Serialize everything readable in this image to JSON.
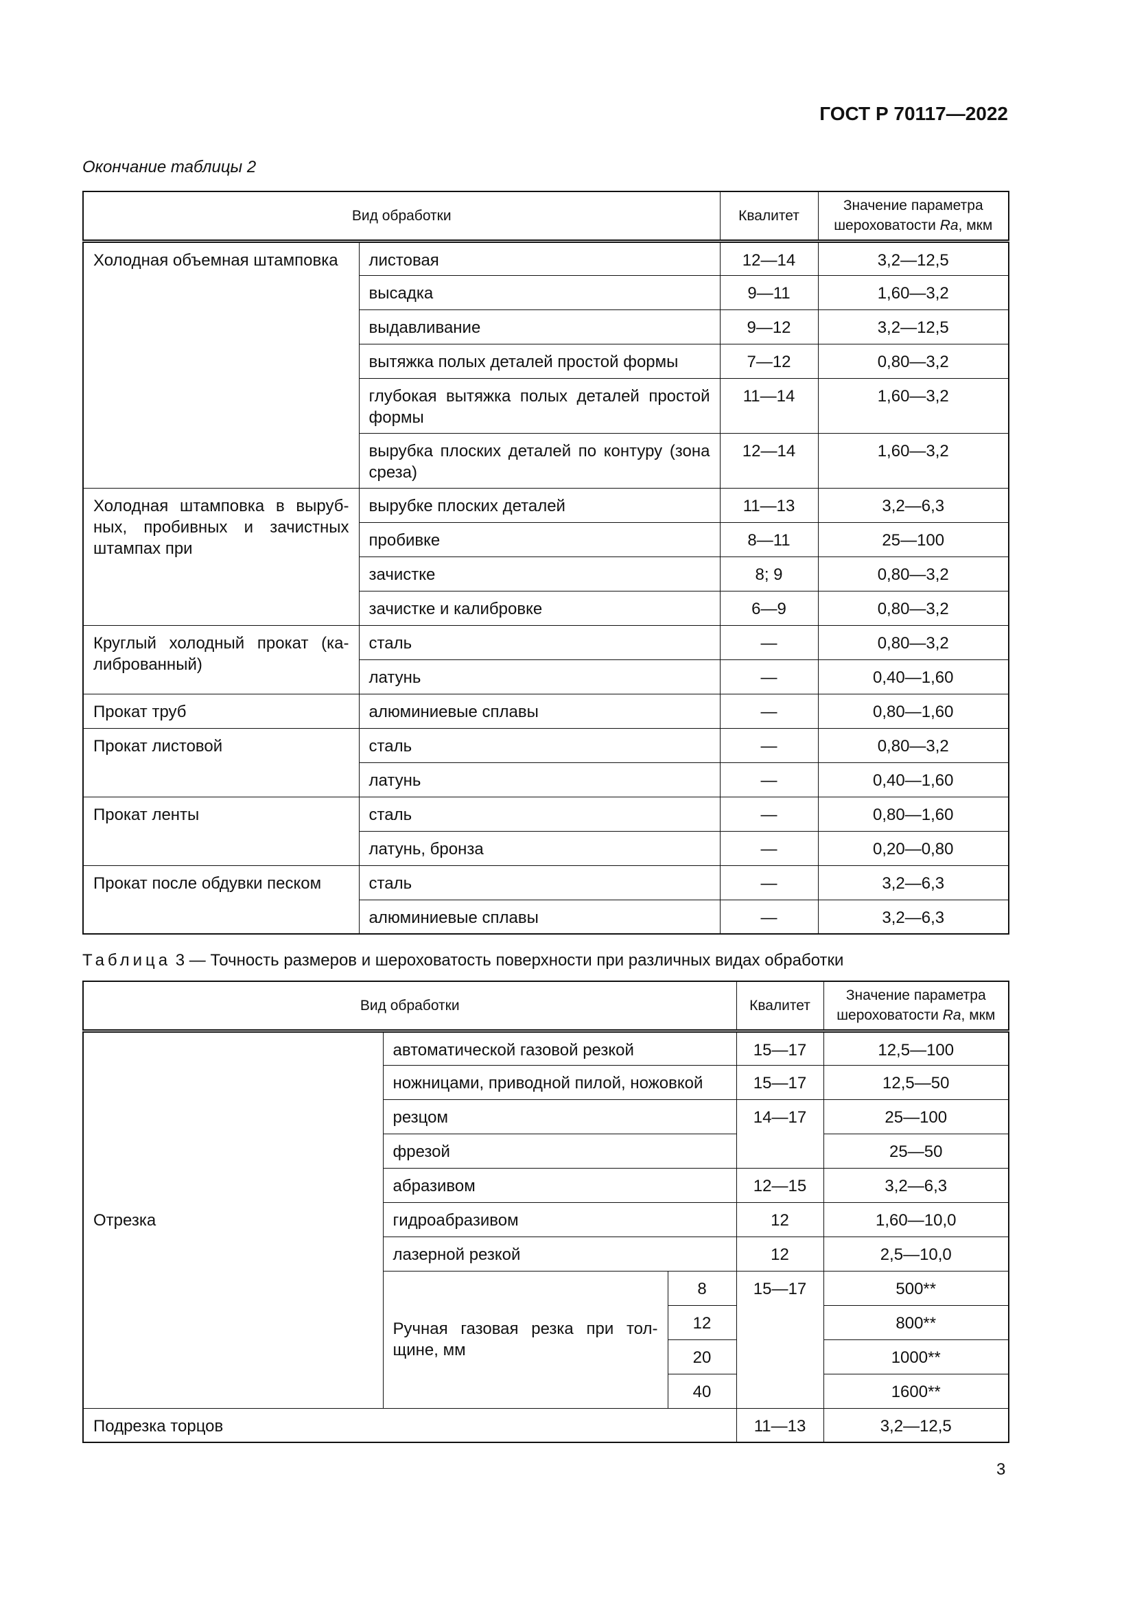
{
  "header": {
    "doc_id": "ГОСТ Р 70117—2022"
  },
  "table2": {
    "caption": "Окончание таблицы 2",
    "columns": {
      "kind": "Вид обработки",
      "grade": "Квалитет",
      "ra_line1": "Значение параметра",
      "ra_line2_pre": "шероховатости ",
      "ra_symbol": "Ra",
      "ra_line2_post": ", мкм"
    },
    "groups": [
      {
        "name": "Холодная объемная штамповка",
        "rows": [
          {
            "item": "листовая",
            "grade": "12—14",
            "ra": "3,2—12,5"
          },
          {
            "item": "высадка",
            "grade": "9—11",
            "ra": "1,60—3,2"
          },
          {
            "item": "выдавливание",
            "grade": "9—12",
            "ra": "3,2—12,5"
          },
          {
            "item": "вытяжка полых деталей простой формы",
            "grade": "7—12",
            "ra": "0,80—3,2"
          },
          {
            "item": "глубокая вытяжка полых деталей простой формы",
            "grade": "11—14",
            "ra": "1,60—3,2"
          },
          {
            "item": "вырубка плоских деталей по контуру (зона среза)",
            "grade": "12—14",
            "ra": "1,60—3,2"
          }
        ]
      },
      {
        "name": "Холодная штамповка в выруб­ных, пробивных и зачистных штампах при",
        "rows": [
          {
            "item": "вырубке плоских деталей",
            "grade": "11—13",
            "ra": "3,2—6,3"
          },
          {
            "item": "пробивке",
            "grade": "8—11",
            "ra": "25—100"
          },
          {
            "item": "зачистке",
            "grade": "8; 9",
            "ra": "0,80—3,2"
          },
          {
            "item": "зачистке и калибровке",
            "grade": "6—9",
            "ra": "0,80—3,2"
          }
        ]
      },
      {
        "name": "Круглый холодный прокат (ка­либрованный)",
        "rows": [
          {
            "item": "сталь",
            "grade": "—",
            "ra": "0,80—3,2"
          },
          {
            "item": "латунь",
            "grade": "—",
            "ra": "0,40—1,60"
          }
        ]
      },
      {
        "name": "Прокат труб",
        "rows": [
          {
            "item": "алюминиевые сплавы",
            "grade": "—",
            "ra": "0,80—1,60"
          }
        ]
      },
      {
        "name": "Прокат листовой",
        "rows": [
          {
            "item": "сталь",
            "grade": "—",
            "ra": "0,80—3,2"
          },
          {
            "item": "латунь",
            "grade": "—",
            "ra": "0,40—1,60"
          }
        ]
      },
      {
        "name": "Прокат ленты",
        "rows": [
          {
            "item": "сталь",
            "grade": "—",
            "ra": "0,80—1,60"
          },
          {
            "item": "латунь, бронза",
            "grade": "—",
            "ra": "0,20—0,80"
          }
        ]
      },
      {
        "name": "Прокат после обдувки песком",
        "rows": [
          {
            "item": "сталь",
            "grade": "—",
            "ra": "3,2—6,3"
          },
          {
            "item": "алюминиевые сплавы",
            "grade": "—",
            "ra": "3,2—6,3"
          }
        ]
      }
    ]
  },
  "table3": {
    "caption_label": "Таблица",
    "caption_text": " 3 — Точность размеров и шероховатость поверхности при различных видах обработки",
    "group": "Отрезка",
    "rows": [
      {
        "item": "автоматической газовой резкой",
        "grade": "15—17",
        "ra": "12,5—100"
      },
      {
        "item": "ножницами, приводной пилой, ножовкой",
        "grade": "15—17",
        "ra": "12,5—50"
      },
      {
        "item": "резцом",
        "grade": "14—17",
        "ra": "25—100"
      },
      {
        "item": "фрезой",
        "ra": "25—50"
      },
      {
        "item": "абразивом",
        "grade": "12—15",
        "ra": "3,2—6,3"
      },
      {
        "item": "гидроабразивом",
        "grade": "12",
        "ra": "1,60—10,0"
      },
      {
        "item": "лазерной резкой",
        "grade": "12",
        "ra": "2,5—10,0"
      }
    ],
    "manual": {
      "item": "Ручная газовая резка при тол­щине, мм",
      "grade": "15—17",
      "rows": [
        {
          "thickness": "8",
          "ra": "500**"
        },
        {
          "thickness": "12",
          "ra": "800**"
        },
        {
          "thickness": "20",
          "ra": "1000**"
        },
        {
          "thickness": "40",
          "ra": "1600**"
        }
      ]
    },
    "last": {
      "item": "Подрезка торцов",
      "grade": "11—13",
      "ra": "3,2—12,5"
    }
  },
  "page_number": "3"
}
